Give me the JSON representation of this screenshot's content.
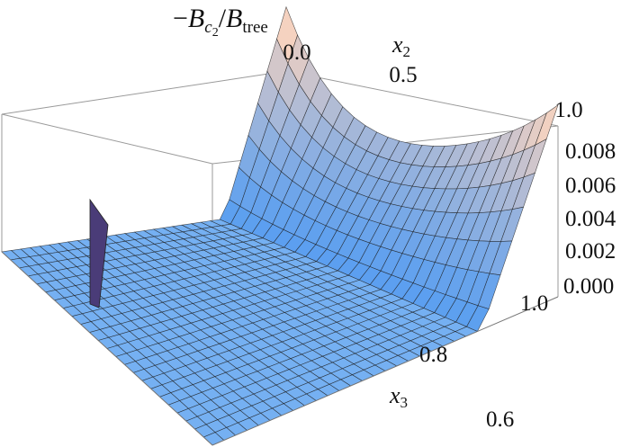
{
  "chart_data": {
    "type": "surface3d",
    "title_parts": {
      "minus": "−",
      "num": "B",
      "num_sub": "c",
      "num_subsub": "2",
      "slash": "/",
      "den": "B",
      "den_sub": "tree"
    },
    "axes": {
      "x2": {
        "label": "x",
        "label_sub": "2",
        "ticks": [
          "0.0",
          "0.5",
          "1.0"
        ],
        "range": [
          0.0,
          1.0
        ]
      },
      "x3": {
        "label": "x",
        "label_sub": "3",
        "ticks": [
          "0.6",
          "0.8",
          "1.0"
        ],
        "range": [
          0.5,
          1.0
        ]
      },
      "z": {
        "ticks": [
          "0.000",
          "0.002",
          "0.004",
          "0.006",
          "0.008"
        ],
        "range": [
          0.0,
          0.009
        ]
      }
    },
    "surface_features": {
      "peak_near_x2_0_x3_1": 0.0092,
      "ridge_near_x2_1_x3_1": 0.0085,
      "plateau_value": 0.0
    },
    "colors": {
      "low": "#5b9ff0",
      "high": "#f5d2c0",
      "edge_flap": "#4a3c78"
    }
  }
}
